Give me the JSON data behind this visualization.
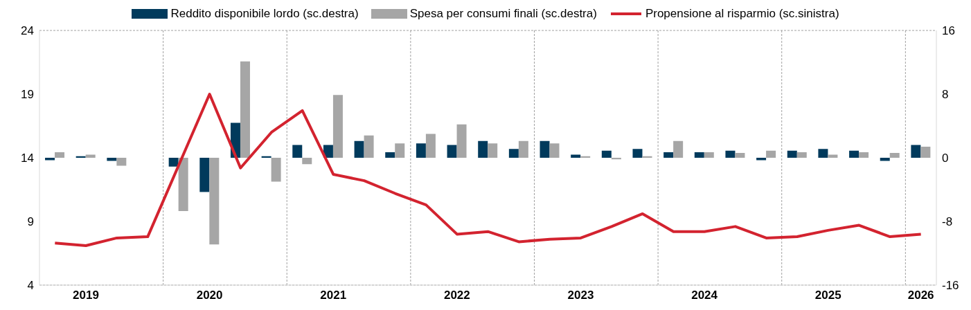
{
  "chart_data": {
    "type": "bar",
    "categories": [
      null,
      "2019",
      null,
      null,
      null,
      "2020",
      null,
      null,
      null,
      "2021",
      null,
      null,
      null,
      "2022",
      null,
      null,
      null,
      "2023",
      null,
      null,
      null,
      "2024",
      null,
      null,
      null,
      "2025",
      null,
      null,
      "2026"
    ],
    "series": [
      {
        "name": "Reddito disponibile lordo (sc.destra)",
        "axis": "y2",
        "color": "#003a5c",
        "values": [
          -0.3,
          0.2,
          -0.4,
          null,
          -1.1,
          -4.3,
          4.4,
          0.2,
          1.6,
          1.6,
          2.1,
          0.7,
          1.8,
          1.6,
          2.1,
          1.1,
          2.1,
          0.4,
          0.9,
          1.1,
          0.7,
          0.7,
          0.9,
          -0.3,
          0.9,
          1.1,
          0.9,
          -0.4,
          1.6
        ]
      },
      {
        "name": "Spesa per consumi finali (sc.destra)",
        "axis": "y2",
        "color": "#a6a6a6",
        "values": [
          0.7,
          0.4,
          -1.0,
          null,
          -6.7,
          -10.9,
          12.1,
          -3.0,
          -0.8,
          7.9,
          2.8,
          1.8,
          3.0,
          4.2,
          1.8,
          2.1,
          1.8,
          0.2,
          -0.2,
          0.2,
          2.1,
          0.7,
          0.6,
          0.9,
          0.7,
          0.4,
          0.7,
          0.6,
          1.4
        ]
      },
      {
        "name": "Propensione al risparmio (sc.sinistra)",
        "type": "line",
        "axis": "y",
        "color": "#d3232f",
        "values": [
          7.3,
          7.1,
          7.7,
          7.8,
          13.4,
          19.0,
          13.2,
          16.0,
          17.7,
          12.7,
          12.2,
          11.2,
          10.3,
          8.0,
          8.2,
          7.4,
          7.6,
          7.7,
          8.6,
          9.6,
          8.2,
          8.2,
          8.6,
          7.7,
          7.8,
          8.3,
          8.7,
          7.8,
          8.0
        ]
      }
    ],
    "ylim": [
      4,
      24
    ],
    "yticks": [
      4,
      9,
      14,
      19,
      24
    ],
    "y2lim": [
      -16,
      16
    ],
    "y2ticks": [
      -16,
      -8,
      0,
      8,
      16
    ],
    "grid": true,
    "legend": "top",
    "line_style": "solid",
    "marker": "none"
  }
}
